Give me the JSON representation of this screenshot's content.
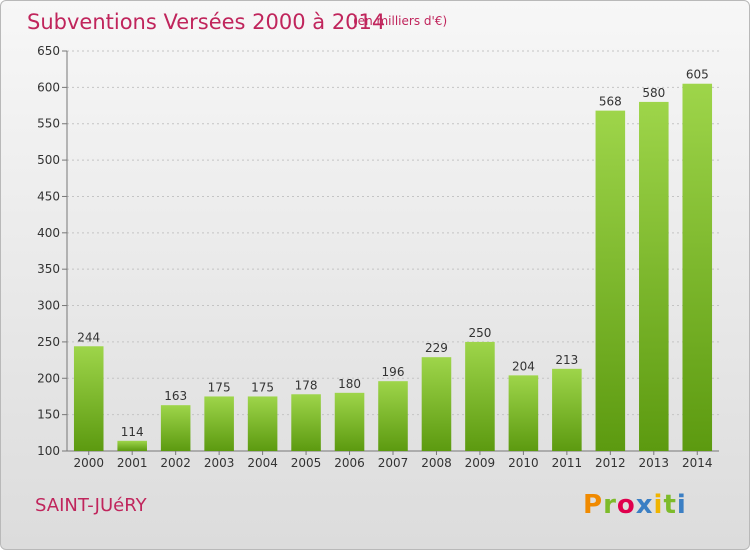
{
  "title": "Subventions Versées 2000 à 2014",
  "subtitle": "(en milliers d'€)",
  "town": "SAINT-JUéRY",
  "logo": {
    "letters": [
      "P",
      "r",
      "o",
      "x",
      "i",
      "t",
      "i"
    ]
  },
  "colors": {
    "title": "#c0255c",
    "bar_top": "#9ed54a",
    "bar_bottom": "#5c9a10",
    "logo": [
      "#f08a00",
      "#7dbb2a",
      "#e0004d",
      "#3b7fc4",
      "#f0b400",
      "#7dbb2a",
      "#3b7fc4"
    ]
  },
  "chart_data": {
    "type": "bar",
    "title": "Subventions Versées 2000 à 2014",
    "subtitle": "(en milliers d'€)",
    "categories": [
      "2000",
      "2001",
      "2002",
      "2003",
      "2004",
      "2005",
      "2006",
      "2007",
      "2008",
      "2009",
      "2010",
      "2011",
      "2012",
      "2013",
      "2014"
    ],
    "values": [
      244,
      114,
      163,
      175,
      175,
      178,
      180,
      196,
      229,
      250,
      204,
      213,
      568,
      580,
      605
    ],
    "ylim": [
      100,
      650
    ],
    "yticks": [
      100,
      150,
      200,
      250,
      300,
      350,
      400,
      450,
      500,
      550,
      600,
      650
    ],
    "grid": true,
    "xlabel": "",
    "ylabel": ""
  }
}
